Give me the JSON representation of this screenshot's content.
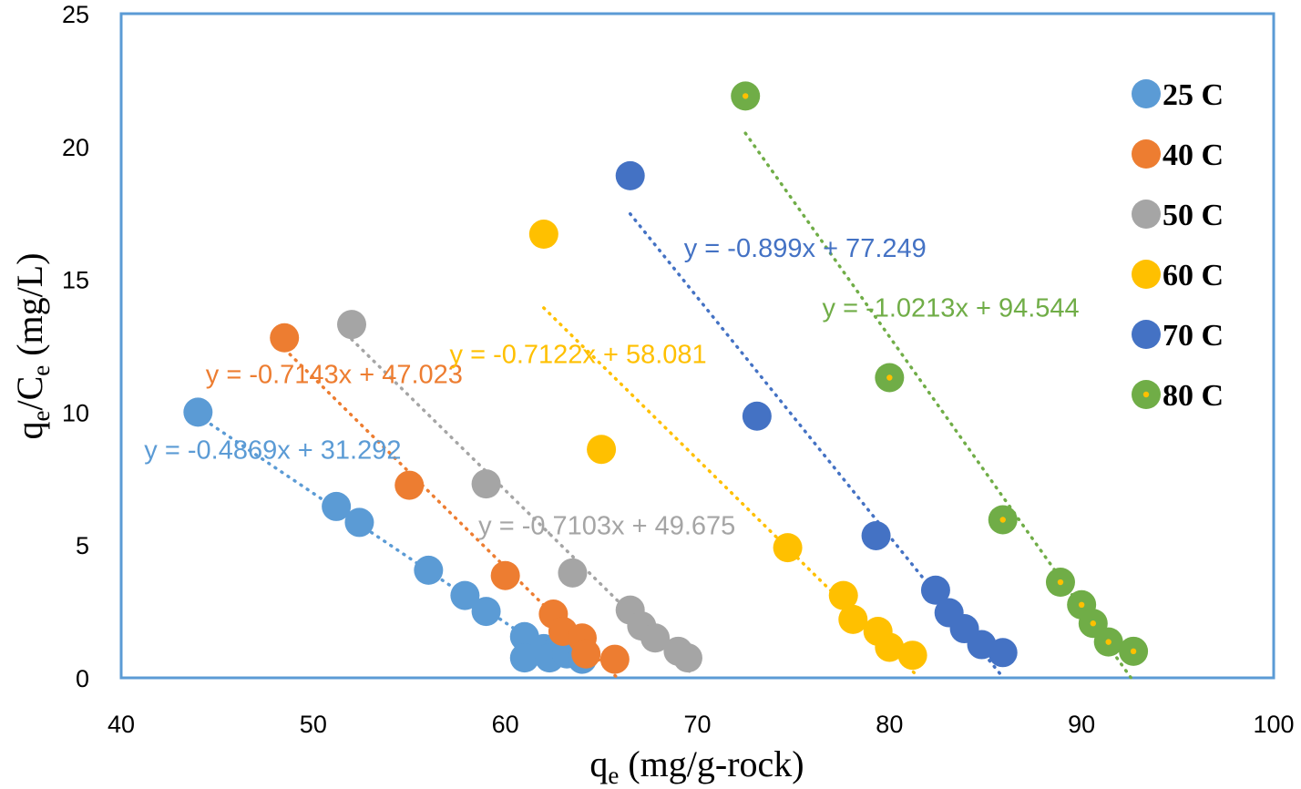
{
  "chart_data": {
    "type": "scatter",
    "xlabel": {
      "main": "q",
      "sub": "e",
      "rest": " (mg/g-rock)"
    },
    "ylabel": {
      "q": "q",
      "q_sub": "e",
      "slash": "/C",
      "c_sub": "e",
      "rest": " (mg/L)"
    },
    "xlim": [
      40,
      100
    ],
    "ylim": [
      0,
      25
    ],
    "xticks": [
      "40",
      "50",
      "60",
      "70",
      "80",
      "90",
      "100"
    ],
    "yticks": [
      "0",
      "5",
      "10",
      "15",
      "20",
      "25"
    ],
    "grid": false,
    "legend_position": "right",
    "series": [
      {
        "name": "25 C",
        "color": "#5B9BD5",
        "marker_dot": false,
        "points": [
          [
            44,
            10.0
          ],
          [
            51.2,
            6.45
          ],
          [
            52.4,
            5.85
          ],
          [
            56,
            4.05
          ],
          [
            57.9,
            3.1
          ],
          [
            59,
            2.5
          ],
          [
            61,
            1.55
          ],
          [
            62,
            1.1
          ],
          [
            62.5,
            0.95
          ],
          [
            61,
            0.75
          ],
          [
            62.3,
            0.75
          ],
          [
            63.2,
            0.9
          ],
          [
            64,
            0.7
          ]
        ],
        "trendline": {
          "x": [
            44,
            62
          ],
          "slope": -0.4869,
          "intercept": 31.292
        },
        "equation": "y = -0.4869x + 31.292",
        "equation_pos": [
          41.2,
          8.25
        ]
      },
      {
        "name": "40 C",
        "color": "#ED7D31",
        "marker_dot": false,
        "points": [
          [
            48.5,
            12.8
          ],
          [
            55,
            7.25
          ],
          [
            60,
            3.85
          ],
          [
            62.5,
            2.4
          ],
          [
            63,
            1.75
          ],
          [
            64,
            1.5
          ],
          [
            64.2,
            0.9
          ],
          [
            65.7,
            0.7
          ]
        ],
        "trendline": {
          "x": [
            48.5,
            65.8
          ],
          "slope": -0.7143,
          "intercept": 47.023
        },
        "equation": "y = -0.7143x + 47.023",
        "equation_pos": [
          44.4,
          11.1
        ]
      },
      {
        "name": "50 C",
        "color": "#A5A5A5",
        "marker_dot": false,
        "points": [
          [
            52,
            13.3
          ],
          [
            59,
            7.3
          ],
          [
            63.5,
            3.95
          ],
          [
            66.5,
            2.55
          ],
          [
            67.1,
            1.95
          ],
          [
            67.8,
            1.5
          ],
          [
            69,
            1.0
          ],
          [
            69.5,
            0.75
          ]
        ],
        "trendline": {
          "x": [
            52,
            69.6
          ],
          "slope": -0.7103,
          "intercept": 49.675
        },
        "equation": "y = -0.7103x + 49.675",
        "equation_pos": [
          58.6,
          5.4
        ]
      },
      {
        "name": "60 C",
        "color": "#FFC000",
        "marker_dot": false,
        "points": [
          [
            62,
            16.7
          ],
          [
            65,
            8.6
          ],
          [
            74.7,
            4.9
          ],
          [
            77.6,
            3.1
          ],
          [
            78.1,
            2.2
          ],
          [
            79.4,
            1.75
          ],
          [
            80,
            1.15
          ],
          [
            81.2,
            0.85
          ]
        ],
        "trendline": {
          "x": [
            62,
            81.3
          ],
          "slope": -0.7122,
          "intercept": 58.081
        },
        "equation": "y = -0.7122x + 58.081",
        "equation_pos": [
          57.1,
          11.85
        ]
      },
      {
        "name": "70 C",
        "color": "#4472C4",
        "marker_dot": false,
        "points": [
          [
            66.5,
            18.9
          ],
          [
            73.1,
            9.85
          ],
          [
            79.3,
            5.35
          ],
          [
            82.4,
            3.3
          ],
          [
            83.1,
            2.45
          ],
          [
            83.9,
            1.85
          ],
          [
            84.8,
            1.25
          ],
          [
            85.9,
            0.95
          ]
        ],
        "trendline": {
          "x": [
            66.5,
            85.9
          ],
          "slope": -0.899,
          "intercept": 77.249
        },
        "equation": "y = -0.899x + 77.249",
        "equation_pos": [
          69.3,
          15.85
        ]
      },
      {
        "name": "80 C",
        "color": "#70AD47",
        "marker_dot": true,
        "points": [
          [
            72.5,
            21.9
          ],
          [
            80,
            11.3
          ],
          [
            85.9,
            5.95
          ],
          [
            88.9,
            3.6
          ],
          [
            90,
            2.75
          ],
          [
            90.6,
            2.05
          ],
          [
            91.4,
            1.35
          ],
          [
            92.7,
            1.0
          ]
        ],
        "trendline": {
          "x": [
            72.5,
            92.7
          ],
          "slope": -1.0213,
          "intercept": 94.544
        },
        "equation": "y = -1.0213x + 94.544",
        "equation_pos": [
          76.5,
          13.6
        ]
      }
    ]
  }
}
